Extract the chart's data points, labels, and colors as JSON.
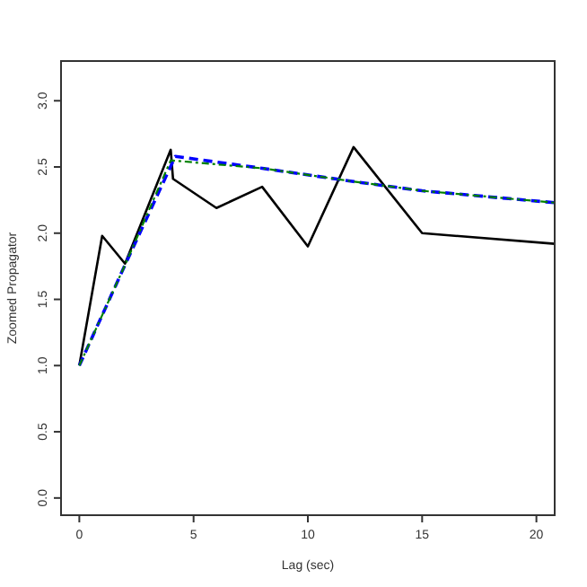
{
  "chart_data": {
    "type": "line",
    "xlabel": "Lag (sec)",
    "ylabel": "Zoomed Propagator",
    "xlim": [
      -0.8,
      20.8
    ],
    "ylim": [
      -0.13,
      3.3
    ],
    "xticks": [
      0,
      5,
      10,
      15,
      20
    ],
    "yticks": [
      {
        "value": 0,
        "label": "0.0"
      },
      {
        "value": 0.5,
        "label": "0.5"
      },
      {
        "value": 1,
        "label": "1.0"
      },
      {
        "value": 1.5,
        "label": "1.5"
      },
      {
        "value": 2,
        "label": "2.0"
      },
      {
        "value": 2.5,
        "label": "2.5"
      },
      {
        "value": 3,
        "label": "3.0"
      }
    ],
    "grid": false,
    "series": [
      {
        "color": "#000000",
        "line_style": "solid",
        "x": [
          0,
          1,
          2,
          4,
          4.1,
          6,
          8,
          10,
          12,
          15,
          20.8
        ],
        "values": [
          1.0,
          1.98,
          1.77,
          2.63,
          2.41,
          2.19,
          2.35,
          1.9,
          2.65,
          2.0,
          1.92
        ]
      },
      {
        "color": "#0000ff",
        "line_style": "dashed",
        "x": [
          0,
          2,
          4.2,
          8,
          12,
          15,
          20.8
        ],
        "values": [
          1.0,
          1.76,
          2.58,
          2.49,
          2.39,
          2.32,
          2.23
        ]
      },
      {
        "color": "#008000",
        "line_style": "dashdot",
        "x": [
          0,
          2,
          4,
          8,
          12,
          15,
          20.8
        ],
        "values": [
          1.0,
          1.76,
          2.55,
          2.49,
          2.39,
          2.32,
          2.23
        ]
      }
    ]
  }
}
